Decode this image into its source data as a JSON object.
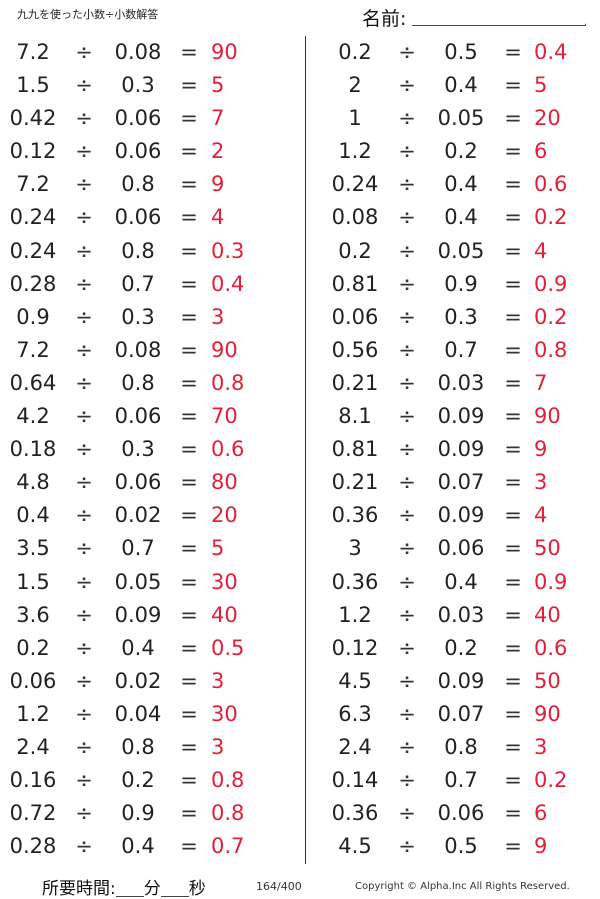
{
  "header": {
    "title": "九九を使った小数÷小数解答",
    "name_label": "名前:",
    "name_dot": "."
  },
  "symbols": {
    "divide": "÷",
    "equals": "="
  },
  "left_problems": [
    {
      "a": "7.2",
      "b": "0.08",
      "ans": "90"
    },
    {
      "a": "1.5",
      "b": "0.3",
      "ans": "5"
    },
    {
      "a": "0.42",
      "b": "0.06",
      "ans": "7"
    },
    {
      "a": "0.12",
      "b": "0.06",
      "ans": "2"
    },
    {
      "a": "7.2",
      "b": "0.8",
      "ans": "9"
    },
    {
      "a": "0.24",
      "b": "0.06",
      "ans": "4"
    },
    {
      "a": "0.24",
      "b": "0.8",
      "ans": "0.3"
    },
    {
      "a": "0.28",
      "b": "0.7",
      "ans": "0.4"
    },
    {
      "a": "0.9",
      "b": "0.3",
      "ans": "3"
    },
    {
      "a": "7.2",
      "b": "0.08",
      "ans": "90"
    },
    {
      "a": "0.64",
      "b": "0.8",
      "ans": "0.8"
    },
    {
      "a": "4.2",
      "b": "0.06",
      "ans": "70"
    },
    {
      "a": "0.18",
      "b": "0.3",
      "ans": "0.6"
    },
    {
      "a": "4.8",
      "b": "0.06",
      "ans": "80"
    },
    {
      "a": "0.4",
      "b": "0.02",
      "ans": "20"
    },
    {
      "a": "3.5",
      "b": "0.7",
      "ans": "5"
    },
    {
      "a": "1.5",
      "b": "0.05",
      "ans": "30"
    },
    {
      "a": "3.6",
      "b": "0.09",
      "ans": "40"
    },
    {
      "a": "0.2",
      "b": "0.4",
      "ans": "0.5"
    },
    {
      "a": "0.06",
      "b": "0.02",
      "ans": "3"
    },
    {
      "a": "1.2",
      "b": "0.04",
      "ans": "30"
    },
    {
      "a": "2.4",
      "b": "0.8",
      "ans": "3"
    },
    {
      "a": "0.16",
      "b": "0.2",
      "ans": "0.8"
    },
    {
      "a": "0.72",
      "b": "0.9",
      "ans": "0.8"
    },
    {
      "a": "0.28",
      "b": "0.4",
      "ans": "0.7"
    }
  ],
  "right_problems": [
    {
      "a": "0.2",
      "b": "0.5",
      "ans": "0.4"
    },
    {
      "a": "2",
      "b": "0.4",
      "ans": "5"
    },
    {
      "a": "1",
      "b": "0.05",
      "ans": "20"
    },
    {
      "a": "1.2",
      "b": "0.2",
      "ans": "6"
    },
    {
      "a": "0.24",
      "b": "0.4",
      "ans": "0.6"
    },
    {
      "a": "0.08",
      "b": "0.4",
      "ans": "0.2"
    },
    {
      "a": "0.2",
      "b": "0.05",
      "ans": "4"
    },
    {
      "a": "0.81",
      "b": "0.9",
      "ans": "0.9"
    },
    {
      "a": "0.06",
      "b": "0.3",
      "ans": "0.2"
    },
    {
      "a": "0.56",
      "b": "0.7",
      "ans": "0.8"
    },
    {
      "a": "0.21",
      "b": "0.03",
      "ans": "7"
    },
    {
      "a": "8.1",
      "b": "0.09",
      "ans": "90"
    },
    {
      "a": "0.81",
      "b": "0.09",
      "ans": "9"
    },
    {
      "a": "0.21",
      "b": "0.07",
      "ans": "3"
    },
    {
      "a": "0.36",
      "b": "0.09",
      "ans": "4"
    },
    {
      "a": "3",
      "b": "0.06",
      "ans": "50"
    },
    {
      "a": "0.36",
      "b": "0.4",
      "ans": "0.9"
    },
    {
      "a": "1.2",
      "b": "0.03",
      "ans": "40"
    },
    {
      "a": "0.12",
      "b": "0.2",
      "ans": "0.6"
    },
    {
      "a": "4.5",
      "b": "0.09",
      "ans": "50"
    },
    {
      "a": "6.3",
      "b": "0.07",
      "ans": "90"
    },
    {
      "a": "2.4",
      "b": "0.8",
      "ans": "3"
    },
    {
      "a": "0.14",
      "b": "0.7",
      "ans": "0.2"
    },
    {
      "a": "0.36",
      "b": "0.06",
      "ans": "6"
    },
    {
      "a": "4.5",
      "b": "0.5",
      "ans": "9"
    }
  ],
  "footer": {
    "time_label": "所要時間:",
    "minutes_label": "分",
    "seconds_label": "秒",
    "page_number": "164/400",
    "copyright": "Copyright © Alpha.Inc All Rights Reserved."
  },
  "colors": {
    "answer": "#e0203a",
    "text": "#222222"
  }
}
